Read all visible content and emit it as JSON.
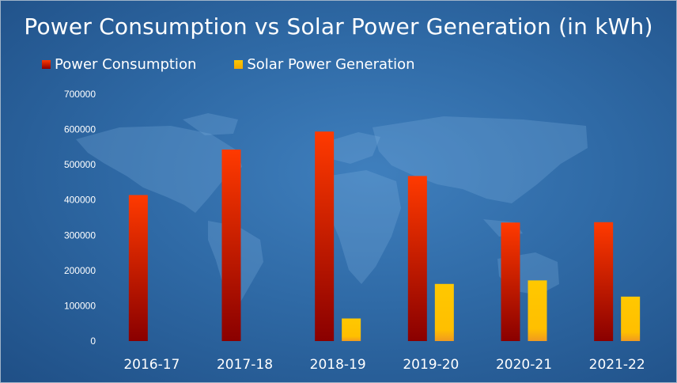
{
  "chart_data": {
    "type": "bar",
    "title": "Power Consumption vs Solar Power Generation (in kWh)",
    "xlabel": "",
    "ylabel": "",
    "ylim": [
      0,
      700000
    ],
    "yticks": [
      "0",
      "100000",
      "200000",
      "300000",
      "400000",
      "500000",
      "600000",
      "700000"
    ],
    "categories": [
      "2016-17",
      "2017-18",
      "2018-19",
      "2019-20",
      "2020-21",
      "2021-22"
    ],
    "series": [
      {
        "name": "Power Consumption",
        "values": [
          414000,
          543000,
          594000,
          468000,
          336000,
          337000
        ]
      },
      {
        "name": "Solar Power Generation",
        "values": [
          0,
          0,
          64000,
          162000,
          172000,
          126000
        ]
      }
    ],
    "legend_position": "top-left",
    "grid": false
  },
  "colors": {
    "consumption_top": "#ff3a00",
    "consumption_bottom": "#8a0000",
    "solar_top": "#ffc800",
    "solar_bottom": "#f0a800",
    "background": "#2f6aa6"
  }
}
